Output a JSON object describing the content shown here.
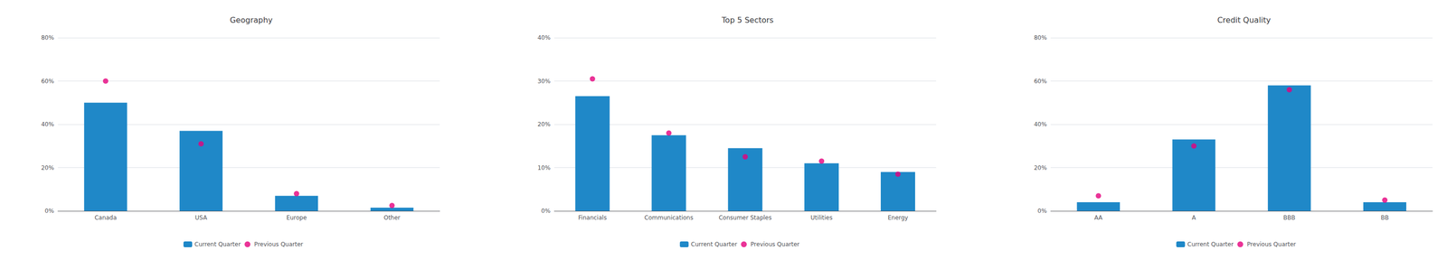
{
  "chart_data": [
    {
      "type": "bar",
      "title": "Geography",
      "categories": [
        "Canada",
        "USA",
        "Europe",
        "Other"
      ],
      "series": [
        {
          "name": "Current Quarter",
          "type": "bar",
          "color": "#1f88c8",
          "values": [
            0.5,
            0.37,
            0.07,
            0.015
          ]
        },
        {
          "name": "Previous Quarter",
          "type": "scatter",
          "color": "#e5007d",
          "marker": "circle",
          "values": [
            0.6,
            0.31,
            0.08,
            0.025
          ]
        }
      ],
      "ylim": [
        0,
        0.8
      ],
      "yticks": [
        {
          "value": 0,
          "label": "0%"
        },
        {
          "value": 0.2,
          "label": "20%"
        },
        {
          "value": 0.4,
          "label": "40%"
        },
        {
          "value": 0.6,
          "label": "60%"
        },
        {
          "value": 0.8,
          "label": "80%"
        }
      ],
      "grid": true,
      "legend": "bottom"
    },
    {
      "type": "bar",
      "title": "Top 5 Sectors",
      "categories": [
        "Financials",
        "Communications",
        "Consumer Staples",
        "Utilities",
        "Energy"
      ],
      "series": [
        {
          "name": "Current Quarter",
          "type": "bar",
          "color": "#1f88c8",
          "values": [
            0.265,
            0.175,
            0.145,
            0.11,
            0.09
          ]
        },
        {
          "name": "Previous Quarter",
          "type": "scatter",
          "color": "#e5007d",
          "marker": "circle",
          "values": [
            0.305,
            0.18,
            0.125,
            0.115,
            0.085
          ]
        }
      ],
      "ylim": [
        0,
        0.4
      ],
      "yticks": [
        {
          "value": 0,
          "label": "0%"
        },
        {
          "value": 0.1,
          "label": "10%"
        },
        {
          "value": 0.2,
          "label": "20%"
        },
        {
          "value": 0.3,
          "label": "30%"
        },
        {
          "value": 0.4,
          "label": "40%"
        }
      ],
      "grid": true,
      "legend": "bottom"
    },
    {
      "type": "bar",
      "title": "Credit Quality",
      "categories": [
        "AA",
        "A",
        "BBB",
        "BB"
      ],
      "series": [
        {
          "name": "Current Quarter",
          "type": "bar",
          "color": "#1f88c8",
          "values": [
            0.04,
            0.33,
            0.58,
            0.04
          ]
        },
        {
          "name": "Previous Quarter",
          "type": "scatter",
          "color": "#e5007d",
          "marker": "circle",
          "values": [
            0.07,
            0.3,
            0.56,
            0.05
          ]
        }
      ],
      "ylim": [
        0,
        0.8
      ],
      "yticks": [
        {
          "value": 0,
          "label": "0%"
        },
        {
          "value": 0.2,
          "label": "20%"
        },
        {
          "value": 0.4,
          "label": "40%"
        },
        {
          "value": 0.6,
          "label": "60%"
        },
        {
          "value": 0.8,
          "label": "80%"
        }
      ],
      "grid": true,
      "legend": "bottom"
    }
  ]
}
